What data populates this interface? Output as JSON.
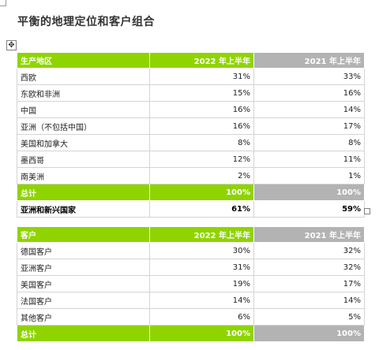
{
  "page": {
    "title": "平衡的地理定位和客户组合"
  },
  "handles": {
    "move": "✥"
  },
  "table1": {
    "headers": [
      "生产地区",
      "2022 年上半年",
      "2021 年上半年"
    ],
    "rows": [
      [
        "西欧",
        "31%",
        "33%"
      ],
      [
        "东欧和非洲",
        "15%",
        "16%"
      ],
      [
        "中国",
        "16%",
        "14%"
      ],
      [
        "亚洲（不包括中国）",
        "16%",
        "17%"
      ],
      [
        "美国和加拿大",
        "8%",
        "8%"
      ],
      [
        "墨西哥",
        "12%",
        "11%"
      ],
      [
        "南美洲",
        "2%",
        "1%"
      ]
    ],
    "total": [
      "总计",
      "100%",
      "100%"
    ],
    "emerging": [
      "亚洲和新兴国家",
      "61%",
      "59%"
    ]
  },
  "table2": {
    "headers": [
      "客户",
      "2022 年上半年",
      "2021 年上半年"
    ],
    "rows": [
      [
        "德国客户",
        "30%",
        "32%"
      ],
      [
        "亚洲客户",
        "31%",
        "32%"
      ],
      [
        "美国客户",
        "19%",
        "17%"
      ],
      [
        "法国客户",
        "14%",
        "14%"
      ],
      [
        "其他客户",
        "6%",
        "5%"
      ]
    ],
    "total": [
      "总计",
      "100%",
      "100%"
    ]
  }
}
